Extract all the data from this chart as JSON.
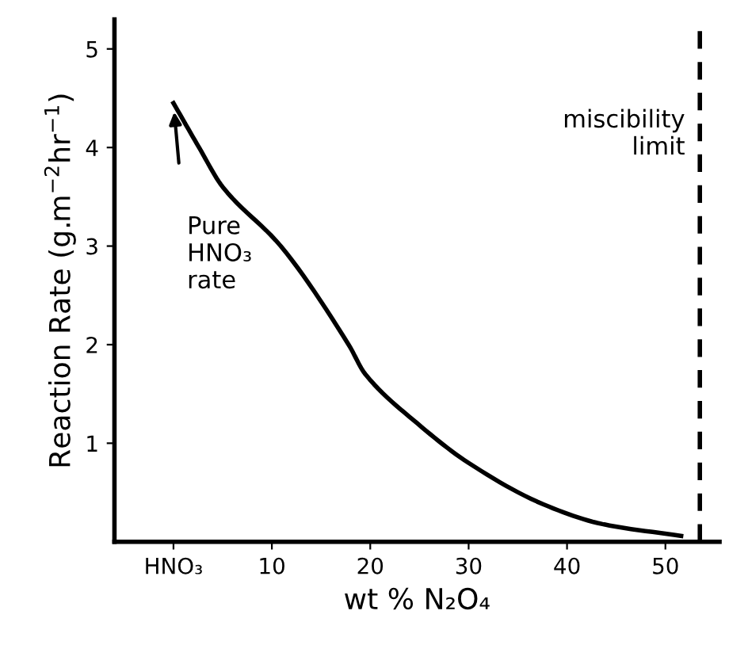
{
  "chart_data": {
    "type": "line",
    "xlabel": "wt % N₂O₄",
    "ylabel": "Reaction Rate (g.m$^{−2}$hr$^{−1}$)",
    "x": [
      0,
      2.6,
      5,
      10.9,
      17.8,
      19.5,
      24.8,
      30,
      37.6,
      43.6,
      51.6
    ],
    "series": [
      {
        "color": "#000000",
        "values": [
          4.45,
          4.0,
          3.6,
          3.0,
          2.0,
          1.7,
          1.2,
          0.8,
          0.38,
          0.18,
          0.06
        ]
      }
    ],
    "xlim": [
      -6,
      55.5
    ],
    "ylim": [
      0,
      5.3
    ],
    "xticks": [
      {
        "value": 0,
        "label": "HNO₃"
      },
      10,
      20,
      30,
      40,
      50
    ],
    "yticks": [
      1,
      2,
      3,
      4,
      5
    ],
    "ref_lines": [
      {
        "axis": "x",
        "value": 53.5,
        "label": "miscibility\nlimit",
        "color": "#000000",
        "line_style": "dashed"
      }
    ],
    "annotations": [
      "Pure\nHNO₃\nrate"
    ],
    "grid": false,
    "legend": false,
    "marker": "none",
    "line_style": "solid"
  }
}
